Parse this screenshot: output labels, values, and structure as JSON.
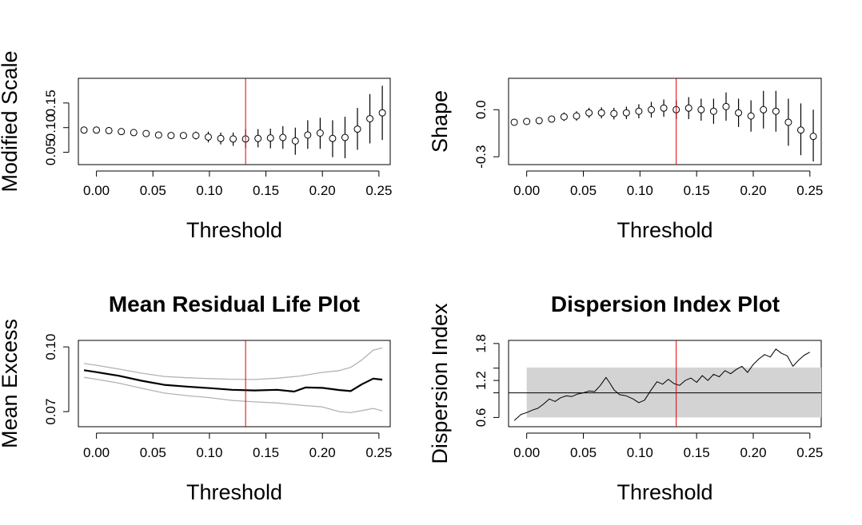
{
  "chart_data": [
    {
      "type": "scatter",
      "panel": "modified-scale",
      "title": "",
      "xlabel": "Threshold",
      "ylabel": "Modified Scale",
      "xlim": [
        -0.016,
        0.26
      ],
      "ylim": [
        0.025,
        0.2
      ],
      "xticks": [
        "0.00",
        "0.05",
        "0.10",
        "0.15",
        "0.20",
        "0.25"
      ],
      "xtick_values": [
        0.0,
        0.05,
        0.1,
        0.15,
        0.2,
        0.25
      ],
      "yticks": [
        "0.05",
        "0.10",
        "0.15"
      ],
      "ytick_values": [
        0.05,
        0.1,
        0.15
      ],
      "threshold_line": 0.132,
      "points": [
        {
          "x": -0.011,
          "y": 0.095,
          "lo": 0.095,
          "hi": 0.095
        },
        {
          "x": 0.0,
          "y": 0.095,
          "lo": 0.095,
          "hi": 0.095
        },
        {
          "x": 0.011,
          "y": 0.094,
          "lo": 0.094,
          "hi": 0.094
        },
        {
          "x": 0.022,
          "y": 0.092,
          "lo": 0.092,
          "hi": 0.092
        },
        {
          "x": 0.033,
          "y": 0.09,
          "lo": 0.09,
          "hi": 0.09
        },
        {
          "x": 0.044,
          "y": 0.088,
          "lo": 0.088,
          "hi": 0.088
        },
        {
          "x": 0.055,
          "y": 0.085,
          "lo": 0.085,
          "hi": 0.085
        },
        {
          "x": 0.066,
          "y": 0.084,
          "lo": 0.084,
          "hi": 0.084
        },
        {
          "x": 0.077,
          "y": 0.084,
          "lo": 0.078,
          "hi": 0.09
        },
        {
          "x": 0.088,
          "y": 0.084,
          "lo": 0.076,
          "hi": 0.092
        },
        {
          "x": 0.099,
          "y": 0.081,
          "lo": 0.07,
          "hi": 0.092
        },
        {
          "x": 0.11,
          "y": 0.078,
          "lo": 0.066,
          "hi": 0.09
        },
        {
          "x": 0.121,
          "y": 0.077,
          "lo": 0.063,
          "hi": 0.09
        },
        {
          "x": 0.132,
          "y": 0.077,
          "lo": 0.058,
          "hi": 0.097
        },
        {
          "x": 0.143,
          "y": 0.078,
          "lo": 0.06,
          "hi": 0.097
        },
        {
          "x": 0.154,
          "y": 0.079,
          "lo": 0.058,
          "hi": 0.098
        },
        {
          "x": 0.165,
          "y": 0.08,
          "lo": 0.057,
          "hi": 0.103
        },
        {
          "x": 0.176,
          "y": 0.073,
          "lo": 0.045,
          "hi": 0.1
        },
        {
          "x": 0.187,
          "y": 0.085,
          "lo": 0.057,
          "hi": 0.115
        },
        {
          "x": 0.198,
          "y": 0.089,
          "lo": 0.057,
          "hi": 0.12
        },
        {
          "x": 0.209,
          "y": 0.078,
          "lo": 0.04,
          "hi": 0.115
        },
        {
          "x": 0.22,
          "y": 0.08,
          "lo": 0.038,
          "hi": 0.122
        },
        {
          "x": 0.231,
          "y": 0.097,
          "lo": 0.055,
          "hi": 0.14
        },
        {
          "x": 0.242,
          "y": 0.118,
          "lo": 0.068,
          "hi": 0.168
        },
        {
          "x": 0.253,
          "y": 0.13,
          "lo": 0.075,
          "hi": 0.185
        }
      ]
    },
    {
      "type": "scatter",
      "panel": "shape",
      "title": "",
      "xlabel": "Threshold",
      "ylabel": "Shape",
      "xlim": [
        -0.016,
        0.26
      ],
      "ylim": [
        -0.35,
        0.2
      ],
      "xticks": [
        "0.00",
        "0.05",
        "0.10",
        "0.15",
        "0.20",
        "0.25"
      ],
      "xtick_values": [
        0.0,
        0.05,
        0.1,
        0.15,
        0.2,
        0.25
      ],
      "yticks": [
        "-0.3",
        "0.0"
      ],
      "ytick_values": [
        -0.3,
        0.0
      ],
      "threshold_line": 0.132,
      "points": [
        {
          "x": -0.011,
          "y": -0.08,
          "lo": -0.095,
          "hi": -0.065
        },
        {
          "x": 0.0,
          "y": -0.075,
          "lo": -0.092,
          "hi": -0.058
        },
        {
          "x": 0.011,
          "y": -0.07,
          "lo": -0.09,
          "hi": -0.05
        },
        {
          "x": 0.022,
          "y": -0.06,
          "lo": -0.082,
          "hi": -0.038
        },
        {
          "x": 0.033,
          "y": -0.045,
          "lo": -0.072,
          "hi": -0.018
        },
        {
          "x": 0.044,
          "y": -0.04,
          "lo": -0.07,
          "hi": -0.01
        },
        {
          "x": 0.055,
          "y": -0.02,
          "lo": -0.052,
          "hi": 0.012
        },
        {
          "x": 0.066,
          "y": -0.02,
          "lo": -0.055,
          "hi": 0.015
        },
        {
          "x": 0.077,
          "y": -0.025,
          "lo": -0.062,
          "hi": 0.012
        },
        {
          "x": 0.088,
          "y": -0.02,
          "lo": -0.06,
          "hi": 0.02
        },
        {
          "x": 0.099,
          "y": -0.01,
          "lo": -0.055,
          "hi": 0.035
        },
        {
          "x": 0.11,
          "y": 0.0,
          "lo": -0.05,
          "hi": 0.05
        },
        {
          "x": 0.121,
          "y": 0.01,
          "lo": -0.045,
          "hi": 0.065
        },
        {
          "x": 0.132,
          "y": 0.0,
          "lo": -0.06,
          "hi": 0.06
        },
        {
          "x": 0.143,
          "y": 0.01,
          "lo": -0.06,
          "hi": 0.08
        },
        {
          "x": 0.154,
          "y": 0.0,
          "lo": -0.07,
          "hi": 0.07
        },
        {
          "x": 0.165,
          "y": -0.01,
          "lo": -0.09,
          "hi": 0.07
        },
        {
          "x": 0.176,
          "y": 0.02,
          "lo": -0.07,
          "hi": 0.11
        },
        {
          "x": 0.187,
          "y": -0.02,
          "lo": -0.11,
          "hi": 0.07
        },
        {
          "x": 0.198,
          "y": -0.04,
          "lo": -0.14,
          "hi": 0.06
        },
        {
          "x": 0.209,
          "y": 0.0,
          "lo": -0.12,
          "hi": 0.12
        },
        {
          "x": 0.22,
          "y": -0.01,
          "lo": -0.14,
          "hi": 0.12
        },
        {
          "x": 0.231,
          "y": -0.08,
          "lo": -0.23,
          "hi": 0.07
        },
        {
          "x": 0.242,
          "y": -0.13,
          "lo": -0.29,
          "hi": 0.04
        },
        {
          "x": 0.253,
          "y": -0.17,
          "lo": -0.33,
          "hi": 0.0
        }
      ]
    },
    {
      "type": "line",
      "panel": "mean-residual-life",
      "title": "Mean Residual Life Plot",
      "xlabel": "Threshold",
      "ylabel": "Mean Excess",
      "xlim": [
        -0.016,
        0.26
      ],
      "ylim": [
        0.063,
        0.103
      ],
      "xticks": [
        "0.00",
        "0.05",
        "0.10",
        "0.15",
        "0.20",
        "0.25"
      ],
      "xtick_values": [
        0.0,
        0.05,
        0.1,
        0.15,
        0.2,
        0.25
      ],
      "yticks": [
        "0.07",
        "0.10"
      ],
      "ytick_values": [
        0.07,
        0.1
      ],
      "threshold_line": 0.132,
      "series": [
        {
          "name": "",
          "role": "estimate",
          "x": [
            -0.011,
            0.0,
            0.02,
            0.04,
            0.06,
            0.08,
            0.1,
            0.12,
            0.14,
            0.16,
            0.175,
            0.185,
            0.2,
            0.215,
            0.225,
            0.235,
            0.245,
            0.253
          ],
          "y": [
            0.0892,
            0.0883,
            0.0866,
            0.0843,
            0.0824,
            0.0816,
            0.0809,
            0.0801,
            0.0798,
            0.0801,
            0.0793,
            0.0812,
            0.081,
            0.08,
            0.0795,
            0.0827,
            0.0853,
            0.0848
          ]
        },
        {
          "name": "",
          "role": "upper",
          "x": [
            -0.011,
            0.0,
            0.02,
            0.04,
            0.06,
            0.08,
            0.1,
            0.12,
            0.14,
            0.16,
            0.18,
            0.2,
            0.215,
            0.225,
            0.235,
            0.245,
            0.253
          ],
          "y": [
            0.0923,
            0.0915,
            0.0897,
            0.0878,
            0.0863,
            0.0857,
            0.0853,
            0.085,
            0.0849,
            0.0855,
            0.0865,
            0.0882,
            0.089,
            0.0905,
            0.094,
            0.0985,
            0.0995
          ]
        },
        {
          "name": "",
          "role": "lower",
          "x": [
            -0.011,
            0.0,
            0.02,
            0.04,
            0.06,
            0.08,
            0.1,
            0.12,
            0.14,
            0.16,
            0.18,
            0.2,
            0.215,
            0.225,
            0.235,
            0.245,
            0.253
          ],
          "y": [
            0.0859,
            0.085,
            0.0832,
            0.0808,
            0.0786,
            0.0774,
            0.0765,
            0.0752,
            0.0745,
            0.074,
            0.073,
            0.0722,
            0.07,
            0.0695,
            0.0705,
            0.0715,
            0.0703
          ]
        }
      ]
    },
    {
      "type": "line",
      "panel": "dispersion-index",
      "title": "Dispersion Index Plot",
      "xlabel": "Threshold",
      "ylabel": "Dispersion Index",
      "xlim": [
        -0.016,
        0.26
      ],
      "ylim": [
        0.45,
        1.85
      ],
      "xticks": [
        "0.00",
        "0.05",
        "0.10",
        "0.15",
        "0.20",
        "0.25"
      ],
      "xtick_values": [
        0.0,
        0.05,
        0.1,
        0.15,
        0.2,
        0.25
      ],
      "yticks": [
        "0.6",
        "1.2",
        "1.8"
      ],
      "ytick_values": [
        0.6,
        1.2,
        1.8
      ],
      "extra_yticks": [
        "1.0",
        "1.4"
      ],
      "extra_ytick_values": [
        1.0,
        1.4
      ],
      "threshold_line": 0.132,
      "reference_line": 1.0,
      "confidence_band": [
        0.6,
        1.41
      ],
      "confidence_band_x": [
        0.0,
        0.26
      ],
      "series": [
        {
          "name": "",
          "x": [
            -0.011,
            -0.005,
            0.0,
            0.005,
            0.01,
            0.015,
            0.02,
            0.025,
            0.03,
            0.035,
            0.04,
            0.045,
            0.05,
            0.055,
            0.06,
            0.065,
            0.07,
            0.073,
            0.077,
            0.082,
            0.088,
            0.094,
            0.099,
            0.104,
            0.11,
            0.115,
            0.12,
            0.125,
            0.13,
            0.135,
            0.14,
            0.145,
            0.15,
            0.155,
            0.16,
            0.165,
            0.17,
            0.175,
            0.18,
            0.185,
            0.19,
            0.195,
            0.2,
            0.205,
            0.21,
            0.215,
            0.22,
            0.225,
            0.23,
            0.235,
            0.24,
            0.245,
            0.25
          ],
          "y": [
            0.55,
            0.65,
            0.68,
            0.72,
            0.75,
            0.82,
            0.9,
            0.86,
            0.92,
            0.95,
            0.94,
            0.98,
            1.0,
            1.03,
            1.02,
            1.12,
            1.25,
            1.17,
            1.05,
            0.97,
            0.95,
            0.9,
            0.84,
            0.88,
            1.05,
            1.18,
            1.14,
            1.22,
            1.15,
            1.12,
            1.2,
            1.24,
            1.17,
            1.28,
            1.2,
            1.3,
            1.26,
            1.36,
            1.31,
            1.38,
            1.43,
            1.33,
            1.46,
            1.55,
            1.62,
            1.58,
            1.71,
            1.64,
            1.6,
            1.43,
            1.53,
            1.61,
            1.66
          ]
        }
      ]
    }
  ]
}
